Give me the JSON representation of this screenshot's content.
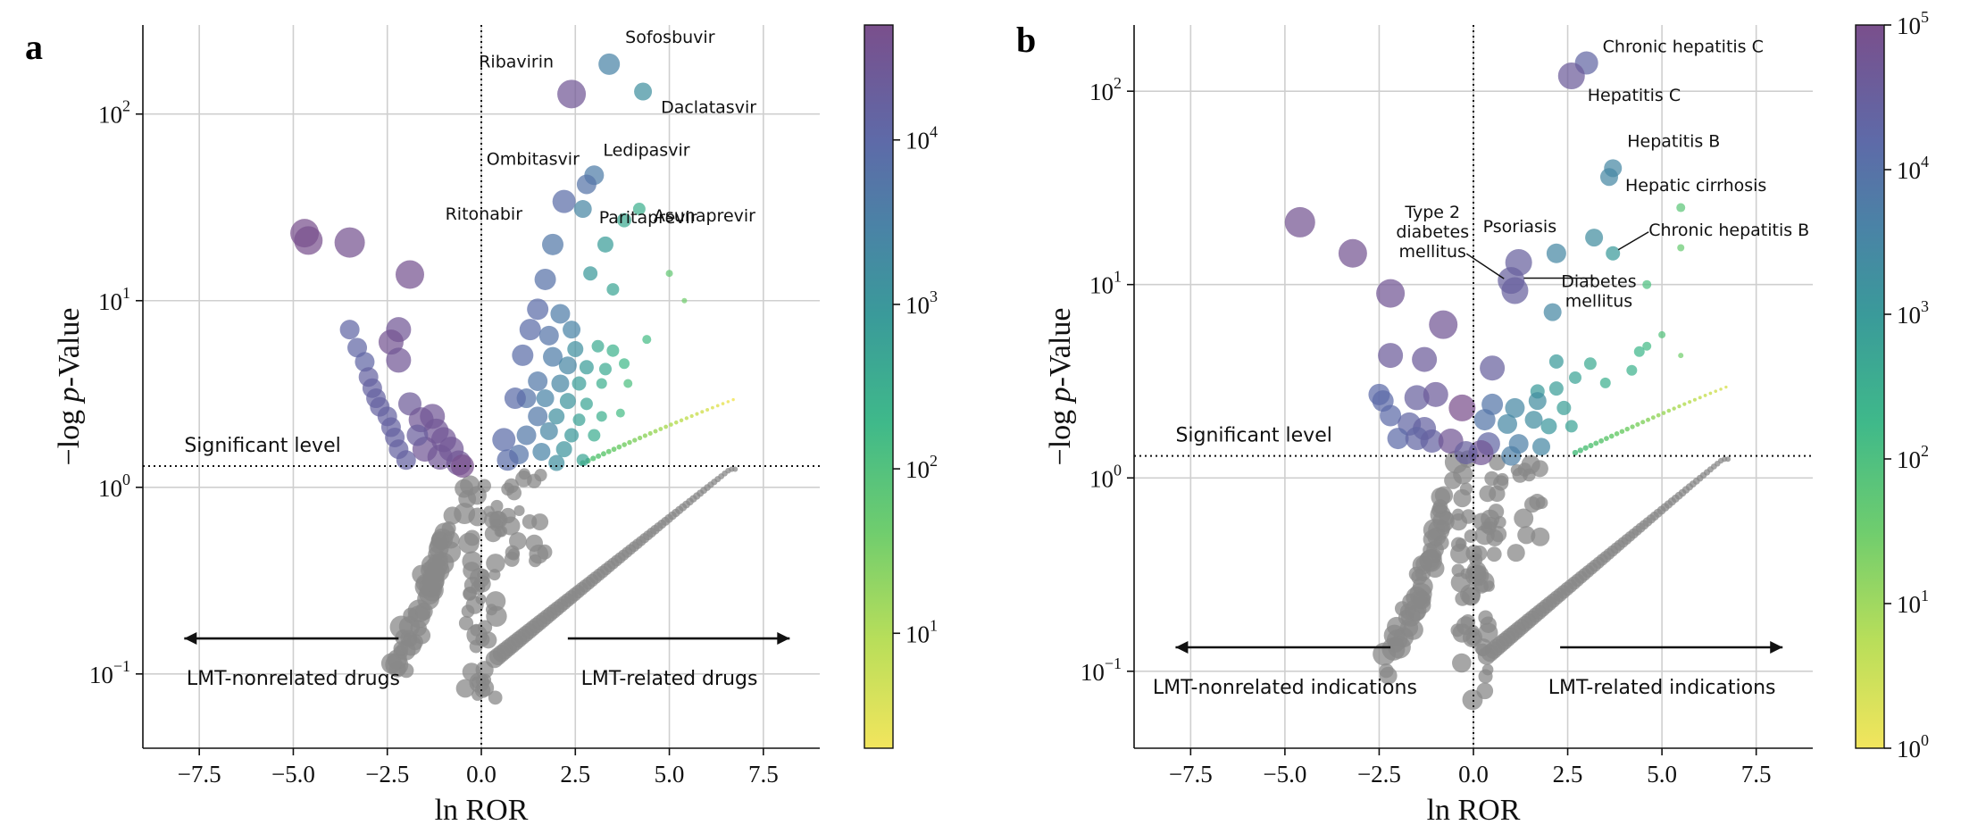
{
  "chart_data": [
    {
      "type": "scatter",
      "panel": "a",
      "xlabel": "ln ROR",
      "ylabel": "−log p-Value",
      "ylabel_pre": "−log ",
      "ylabel_italic": "p",
      "ylabel_post": "-Value",
      "xlim": [
        -9,
        9
      ],
      "ylim": [
        0.04,
        300
      ],
      "yscale": "log",
      "grid": true,
      "x_ticks": [
        -7.5,
        -5.0,
        -2.5,
        0.0,
        2.5,
        5.0,
        7.5
      ],
      "x_tick_labels": [
        "−7.5",
        "−5.0",
        "−2.5",
        "0.0",
        "2.5",
        "5.0",
        "7.5"
      ],
      "y_ticks": [
        {
          "value": 0.1,
          "exp": "−1"
        },
        {
          "value": 1,
          "exp": "0"
        },
        {
          "value": 10,
          "exp": "1"
        },
        {
          "value": 100,
          "exp": "2"
        }
      ],
      "significant_level": {
        "label": "Significant level",
        "value": 1.3
      },
      "region_labels": {
        "left": "LMT-nonrelated drugs",
        "right": "LMT-related drugs"
      },
      "colorbar": {
        "min": 2,
        "max": 50000,
        "ticks": [
          {
            "value": 10,
            "exp": "1"
          },
          {
            "value": 100,
            "exp": "2"
          },
          {
            "value": 1000,
            "exp": "3"
          },
          {
            "value": 10000,
            "exp": "4"
          }
        ]
      },
      "points": [
        {
          "x": 3.4,
          "y": 185,
          "c": 3000,
          "s": 12
        },
        {
          "x": 2.4,
          "y": 128,
          "c": 30000,
          "s": 16
        },
        {
          "x": 4.3,
          "y": 132,
          "c": 1500,
          "s": 10
        },
        {
          "x": 3.0,
          "y": 47,
          "c": 4000,
          "s": 11
        },
        {
          "x": 2.8,
          "y": 42,
          "c": 6000,
          "s": 11
        },
        {
          "x": 2.2,
          "y": 34,
          "c": 8000,
          "s": 13
        },
        {
          "x": 2.7,
          "y": 31,
          "c": 2500,
          "s": 10
        },
        {
          "x": 3.8,
          "y": 27,
          "c": 400,
          "s": 8
        },
        {
          "x": 4.2,
          "y": 31,
          "c": 300,
          "s": 7
        },
        {
          "x": 1.9,
          "y": 20,
          "c": 5000,
          "s": 12
        },
        {
          "x": 3.3,
          "y": 20,
          "c": 800,
          "s": 9
        },
        {
          "x": 2.9,
          "y": 14,
          "c": 900,
          "s": 8
        },
        {
          "x": 5.0,
          "y": 14,
          "c": 60,
          "s": 4
        },
        {
          "x": 1.7,
          "y": 13,
          "c": 7000,
          "s": 12
        },
        {
          "x": 3.5,
          "y": 11.5,
          "c": 500,
          "s": 7
        },
        {
          "x": 5.4,
          "y": 10,
          "c": 40,
          "s": 3
        },
        {
          "x": 1.5,
          "y": 9,
          "c": 9000,
          "s": 12
        },
        {
          "x": 2.1,
          "y": 8.5,
          "c": 4000,
          "s": 11
        },
        {
          "x": 2.4,
          "y": 7,
          "c": 3000,
          "s": 10
        },
        {
          "x": 1.3,
          "y": 7,
          "c": 9000,
          "s": 12
        },
        {
          "x": 1.8,
          "y": 6.5,
          "c": 6000,
          "s": 11
        },
        {
          "x": 2.5,
          "y": 5.5,
          "c": 1500,
          "s": 9
        },
        {
          "x": 3.1,
          "y": 5.7,
          "c": 400,
          "s": 7
        },
        {
          "x": 3.5,
          "y": 5.4,
          "c": 250,
          "s": 7
        },
        {
          "x": 4.4,
          "y": 6.2,
          "c": 150,
          "s": 5
        },
        {
          "x": 1.1,
          "y": 5.1,
          "c": 8000,
          "s": 12
        },
        {
          "x": 1.9,
          "y": 5,
          "c": 4000,
          "s": 11
        },
        {
          "x": 2.3,
          "y": 4.5,
          "c": 2500,
          "s": 10
        },
        {
          "x": 2.8,
          "y": 4.4,
          "c": 800,
          "s": 8
        },
        {
          "x": 3.3,
          "y": 4.3,
          "c": 400,
          "s": 7
        },
        {
          "x": 3.8,
          "y": 4.6,
          "c": 180,
          "s": 6
        },
        {
          "x": 1.5,
          "y": 3.7,
          "c": 5000,
          "s": 11
        },
        {
          "x": 2.1,
          "y": 3.6,
          "c": 2500,
          "s": 10
        },
        {
          "x": 2.6,
          "y": 3.6,
          "c": 700,
          "s": 8
        },
        {
          "x": 3.2,
          "y": 3.6,
          "c": 300,
          "s": 6
        },
        {
          "x": 3.9,
          "y": 3.6,
          "c": 120,
          "s": 5
        },
        {
          "x": 1.2,
          "y": 3.0,
          "c": 6000,
          "s": 11
        },
        {
          "x": 1.7,
          "y": 3.0,
          "c": 3000,
          "s": 10
        },
        {
          "x": 2.3,
          "y": 2.9,
          "c": 1200,
          "s": 9
        },
        {
          "x": 2.8,
          "y": 2.8,
          "c": 500,
          "s": 7
        },
        {
          "x": 0.9,
          "y": 3.0,
          "c": 9000,
          "s": 12
        },
        {
          "x": 1.5,
          "y": 2.4,
          "c": 5000,
          "s": 11
        },
        {
          "x": 2.0,
          "y": 2.4,
          "c": 1500,
          "s": 9
        },
        {
          "x": 2.6,
          "y": 2.3,
          "c": 600,
          "s": 7
        },
        {
          "x": 3.2,
          "y": 2.4,
          "c": 300,
          "s": 6
        },
        {
          "x": 3.7,
          "y": 2.5,
          "c": 150,
          "s": 5
        },
        {
          "x": 0.6,
          "y": 1.8,
          "c": 9000,
          "s": 13
        },
        {
          "x": 1.2,
          "y": 1.9,
          "c": 5000,
          "s": 11
        },
        {
          "x": 1.8,
          "y": 2.0,
          "c": 2500,
          "s": 10
        },
        {
          "x": 2.4,
          "y": 1.9,
          "c": 900,
          "s": 8
        },
        {
          "x": 3.0,
          "y": 1.9,
          "c": 350,
          "s": 7
        },
        {
          "x": 1.0,
          "y": 1.5,
          "c": 6000,
          "s": 11
        },
        {
          "x": 1.6,
          "y": 1.55,
          "c": 3000,
          "s": 10
        },
        {
          "x": 2.2,
          "y": 1.6,
          "c": 1200,
          "s": 9
        },
        {
          "x": 0.7,
          "y": 1.4,
          "c": 8000,
          "s": 12
        },
        {
          "x": 2.0,
          "y": 1.35,
          "c": 1500,
          "s": 9
        },
        {
          "x": 2.7,
          "y": 1.4,
          "c": 500,
          "s": 7
        },
        {
          "x": -4.7,
          "y": 23,
          "c": 45000,
          "s": 16
        },
        {
          "x": -4.6,
          "y": 21,
          "c": 45000,
          "s": 16
        },
        {
          "x": -3.5,
          "y": 20.5,
          "c": 40000,
          "s": 17
        },
        {
          "x": -1.9,
          "y": 13.8,
          "c": 40000,
          "s": 16
        },
        {
          "x": -3.5,
          "y": 7,
          "c": 12000,
          "s": 11
        },
        {
          "x": -2.2,
          "y": 7,
          "c": 30000,
          "s": 14
        },
        {
          "x": -2.4,
          "y": 6,
          "c": 35000,
          "s": 14
        },
        {
          "x": -3.3,
          "y": 5.6,
          "c": 12000,
          "s": 11
        },
        {
          "x": -3.1,
          "y": 4.7,
          "c": 12000,
          "s": 11
        },
        {
          "x": -2.2,
          "y": 4.8,
          "c": 30000,
          "s": 14
        },
        {
          "x": -3.0,
          "y": 3.9,
          "c": 15000,
          "s": 11
        },
        {
          "x": -2.9,
          "y": 3.4,
          "c": 15000,
          "s": 11
        },
        {
          "x": -2.8,
          "y": 3.0,
          "c": 15000,
          "s": 11
        },
        {
          "x": -2.7,
          "y": 2.7,
          "c": 15000,
          "s": 11
        },
        {
          "x": -2.5,
          "y": 2.4,
          "c": 15000,
          "s": 11
        },
        {
          "x": -2.4,
          "y": 2.1,
          "c": 15000,
          "s": 11
        },
        {
          "x": -2.3,
          "y": 1.85,
          "c": 15000,
          "s": 11
        },
        {
          "x": -2.2,
          "y": 1.6,
          "c": 15000,
          "s": 11
        },
        {
          "x": -2.0,
          "y": 1.4,
          "c": 15000,
          "s": 11
        },
        {
          "x": -1.9,
          "y": 2.8,
          "c": 25000,
          "s": 13
        },
        {
          "x": -1.6,
          "y": 2.3,
          "c": 30000,
          "s": 14
        },
        {
          "x": -1.3,
          "y": 2.4,
          "c": 30000,
          "s": 14
        },
        {
          "x": -1.2,
          "y": 2.0,
          "c": 30000,
          "s": 14
        },
        {
          "x": -1.0,
          "y": 1.8,
          "c": 30000,
          "s": 14
        },
        {
          "x": -0.8,
          "y": 1.6,
          "c": 30000,
          "s": 14
        },
        {
          "x": -1.5,
          "y": 1.6,
          "c": 30000,
          "s": 14
        },
        {
          "x": -1.1,
          "y": 1.45,
          "c": 30000,
          "s": 14
        },
        {
          "x": -0.6,
          "y": 1.35,
          "c": 30000,
          "s": 14
        },
        {
          "x": -0.5,
          "y": 1.3,
          "c": 45000,
          "s": 13
        },
        {
          "x": -1.7,
          "y": 1.9,
          "c": 20000,
          "s": 12
        }
      ],
      "labels": [
        {
          "text": "Sofosbuvir",
          "x": 3.4,
          "y": 185
        },
        {
          "text": "Ribavirin",
          "x": 2.4,
          "y": 128
        },
        {
          "text": "Daclatasvir",
          "x": 4.3,
          "y": 132
        },
        {
          "text": "Ledipasvir",
          "x": 3.0,
          "y": 47
        },
        {
          "text": "Ombitasvir",
          "x": 2.8,
          "y": 42
        },
        {
          "text": "Paritaprevir",
          "x": 2.7,
          "y": 31
        },
        {
          "text": "Asunaprevir",
          "x": 4.2,
          "y": 31
        },
        {
          "text": "Ritonabir",
          "x": 1.9,
          "y": 20
        }
      ]
    },
    {
      "type": "scatter",
      "panel": "b",
      "xlabel": "ln ROR",
      "ylabel": "−log p-Value",
      "ylabel_pre": "−log ",
      "ylabel_italic": "p",
      "ylabel_post": "-Value",
      "xlim": [
        -9,
        9
      ],
      "ylim": [
        0.04,
        220
      ],
      "yscale": "log",
      "grid": true,
      "x_ticks": [
        -7.5,
        -5.0,
        -2.5,
        0.0,
        2.5,
        5.0,
        7.5
      ],
      "x_tick_labels": [
        "−7.5",
        "−5.0",
        "−2.5",
        "0.0",
        "2.5",
        "5.0",
        "7.5"
      ],
      "y_ticks": [
        {
          "value": 0.1,
          "exp": "−1"
        },
        {
          "value": 1,
          "exp": "0"
        },
        {
          "value": 10,
          "exp": "1"
        },
        {
          "value": 100,
          "exp": "2"
        }
      ],
      "significant_level": {
        "label": "Significant level",
        "value": 1.3
      },
      "region_labels": {
        "left": "LMT-nonrelated indications",
        "right": "LMT-related indications"
      },
      "colorbar": {
        "min": 1,
        "max": 100000,
        "ticks": [
          {
            "value": 1,
            "exp": "0"
          },
          {
            "value": 10,
            "exp": "1"
          },
          {
            "value": 100,
            "exp": "2"
          },
          {
            "value": 1000,
            "exp": "3"
          },
          {
            "value": 10000,
            "exp": "4"
          },
          {
            "value": 100000,
            "exp": "5"
          }
        ]
      },
      "points": [
        {
          "x": 3.0,
          "y": 140,
          "c": 20000,
          "s": 13
        },
        {
          "x": 2.6,
          "y": 120,
          "c": 40000,
          "s": 15
        },
        {
          "x": 3.7,
          "y": 40,
          "c": 3000,
          "s": 10
        },
        {
          "x": 3.6,
          "y": 36,
          "c": 3000,
          "s": 10
        },
        {
          "x": 5.5,
          "y": 25,
          "c": 60,
          "s": 5
        },
        {
          "x": -4.6,
          "y": 21,
          "c": 70000,
          "s": 17
        },
        {
          "x": 3.2,
          "y": 17.5,
          "c": 2000,
          "s": 10
        },
        {
          "x": 2.2,
          "y": 14.5,
          "c": 3000,
          "s": 11
        },
        {
          "x": 3.7,
          "y": 14.5,
          "c": 1000,
          "s": 8
        },
        {
          "x": 5.5,
          "y": 15.5,
          "c": 40,
          "s": 4
        },
        {
          "x": -3.2,
          "y": 14.5,
          "c": 70000,
          "s": 16
        },
        {
          "x": 1.2,
          "y": 13,
          "c": 30000,
          "s": 15
        },
        {
          "x": 1.0,
          "y": 10.5,
          "c": 30000,
          "s": 15
        },
        {
          "x": 1.1,
          "y": 9.3,
          "c": 30000,
          "s": 15
        },
        {
          "x": 4.6,
          "y": 10,
          "c": 100,
          "s": 5
        },
        {
          "x": -2.2,
          "y": 9,
          "c": 60000,
          "s": 16
        },
        {
          "x": 2.1,
          "y": 7.2,
          "c": 3000,
          "s": 10
        },
        {
          "x": -0.8,
          "y": 6.2,
          "c": 60000,
          "s": 16
        },
        {
          "x": 5.0,
          "y": 5.5,
          "c": 80,
          "s": 4
        },
        {
          "x": 4.6,
          "y": 4.8,
          "c": 150,
          "s": 5
        },
        {
          "x": 4.4,
          "y": 4.5,
          "c": 200,
          "s": 6
        },
        {
          "x": -2.2,
          "y": 4.3,
          "c": 40000,
          "s": 14
        },
        {
          "x": -1.3,
          "y": 4.1,
          "c": 40000,
          "s": 14
        },
        {
          "x": 5.5,
          "y": 4.3,
          "c": 30,
          "s": 3
        },
        {
          "x": 2.2,
          "y": 4.0,
          "c": 1000,
          "s": 8
        },
        {
          "x": 3.1,
          "y": 3.9,
          "c": 400,
          "s": 7
        },
        {
          "x": 0.5,
          "y": 3.7,
          "c": 30000,
          "s": 14
        },
        {
          "x": 4.2,
          "y": 3.6,
          "c": 250,
          "s": 6
        },
        {
          "x": 2.7,
          "y": 3.3,
          "c": 600,
          "s": 7
        },
        {
          "x": 2.2,
          "y": 2.9,
          "c": 800,
          "s": 8
        },
        {
          "x": 1.7,
          "y": 2.8,
          "c": 1000,
          "s": 8
        },
        {
          "x": 3.5,
          "y": 3.1,
          "c": 300,
          "s": 6
        },
        {
          "x": -2.5,
          "y": 2.7,
          "c": 15000,
          "s": 12
        },
        {
          "x": -2.4,
          "y": 2.5,
          "c": 15000,
          "s": 12
        },
        {
          "x": -1.5,
          "y": 2.6,
          "c": 30000,
          "s": 14
        },
        {
          "x": -1.0,
          "y": 2.7,
          "c": 40000,
          "s": 14
        },
        {
          "x": -0.3,
          "y": 2.3,
          "c": 100000,
          "s": 15
        },
        {
          "x": 0.5,
          "y": 2.4,
          "c": 8000,
          "s": 12
        },
        {
          "x": 1.1,
          "y": 2.3,
          "c": 3000,
          "s": 11
        },
        {
          "x": 1.7,
          "y": 2.5,
          "c": 2000,
          "s": 10
        },
        {
          "x": 2.4,
          "y": 2.3,
          "c": 700,
          "s": 8
        },
        {
          "x": -2.2,
          "y": 2.1,
          "c": 15000,
          "s": 12
        },
        {
          "x": -1.7,
          "y": 1.9,
          "c": 20000,
          "s": 13
        },
        {
          "x": -1.3,
          "y": 1.8,
          "c": 25000,
          "s": 13
        },
        {
          "x": 0.3,
          "y": 2.0,
          "c": 8000,
          "s": 12
        },
        {
          "x": 0.9,
          "y": 1.9,
          "c": 3000,
          "s": 11
        },
        {
          "x": 1.6,
          "y": 2.0,
          "c": 2000,
          "s": 10
        },
        {
          "x": 2.0,
          "y": 1.85,
          "c": 1200,
          "s": 9
        },
        {
          "x": 2.6,
          "y": 1.85,
          "c": 600,
          "s": 7
        },
        {
          "x": -2.0,
          "y": 1.6,
          "c": 15000,
          "s": 12
        },
        {
          "x": -1.5,
          "y": 1.6,
          "c": 20000,
          "s": 13
        },
        {
          "x": -1.1,
          "y": 1.55,
          "c": 25000,
          "s": 13
        },
        {
          "x": -0.6,
          "y": 1.55,
          "c": 60000,
          "s": 14
        },
        {
          "x": 0.4,
          "y": 1.5,
          "c": 20000,
          "s": 13
        },
        {
          "x": 1.2,
          "y": 1.5,
          "c": 5000,
          "s": 11
        },
        {
          "x": 1.8,
          "y": 1.45,
          "c": 3000,
          "s": 10
        },
        {
          "x": 0.2,
          "y": 1.35,
          "c": 60000,
          "s": 14
        },
        {
          "x": -0.2,
          "y": 1.35,
          "c": 30000,
          "s": 13
        },
        {
          "x": 1.0,
          "y": 1.3,
          "c": 5000,
          "s": 11
        }
      ],
      "labels": [
        {
          "text": "Chronic hepatitis C",
          "x": 3.0,
          "y": 140
        },
        {
          "text": "Hepatitis C",
          "x": 2.6,
          "y": 120
        },
        {
          "text": "Hepatitis B",
          "x": 3.7,
          "y": 40
        },
        {
          "text": "Hepatic cirrhosis",
          "x": 3.6,
          "y": 36
        },
        {
          "text": "Chronic hepatitis B",
          "x": 3.7,
          "y": 14.5
        },
        {
          "text": "Psoriasis",
          "x": 1.2,
          "y": 13
        },
        {
          "text": "Type 2 diabetes mellitus",
          "lines": [
            "Type 2",
            "diabetes",
            "mellitus"
          ],
          "x": 1.0,
          "y": 10.5
        },
        {
          "text": "Diabetes mellitus",
          "lines": [
            "Diabetes",
            "mellitus"
          ],
          "x": 1.1,
          "y": 9.3
        }
      ]
    }
  ]
}
